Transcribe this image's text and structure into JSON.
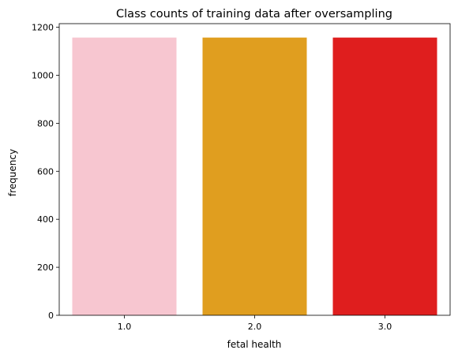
{
  "chart_data": {
    "type": "bar",
    "title": "Class counts of training data after oversampling",
    "xlabel": "fetal health",
    "ylabel": "frequency",
    "categories": [
      "1.0",
      "2.0",
      "3.0"
    ],
    "values": [
      1157,
      1157,
      1157
    ],
    "colors": [
      "#f7c6d0",
      "#e09e1f",
      "#df1e1e"
    ],
    "ylim": [
      0,
      1215
    ],
    "yticks": [
      0,
      200,
      400,
      600,
      800,
      1000,
      1200
    ],
    "grid": false,
    "legend": "none"
  }
}
